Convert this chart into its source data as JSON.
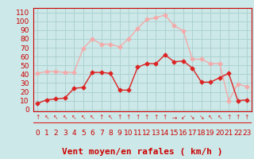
{
  "hours": [
    0,
    1,
    2,
    3,
    4,
    5,
    6,
    7,
    8,
    9,
    10,
    11,
    12,
    13,
    14,
    15,
    16,
    17,
    18,
    19,
    20,
    21,
    22,
    23
  ],
  "wind_mean": [
    7,
    11,
    12,
    13,
    24,
    25,
    42,
    42,
    41,
    22,
    22,
    48,
    52,
    52,
    62,
    54,
    55,
    47,
    31,
    31,
    36,
    41,
    10,
    11
  ],
  "wind_gust": [
    41,
    43,
    43,
    42,
    42,
    69,
    80,
    74,
    74,
    71,
    80,
    92,
    102,
    104,
    107,
    95,
    89,
    57,
    57,
    52,
    52,
    10,
    29,
    26
  ],
  "bg_color": "#cce8e8",
  "grid_color": "#aacece",
  "mean_color": "#dd2222",
  "gust_color": "#f4aaaa",
  "xlabel": "Vent moyen/en rafales ( km/h )",
  "xlabel_color": "#cc0000",
  "yticks": [
    0,
    10,
    20,
    30,
    40,
    50,
    60,
    70,
    80,
    90,
    100,
    110
  ],
  "ylim": [
    -2,
    115
  ],
  "xlim": [
    -0.5,
    23.5
  ],
  "axis_fontsize": 6.5,
  "xlabel_fontsize": 8
}
